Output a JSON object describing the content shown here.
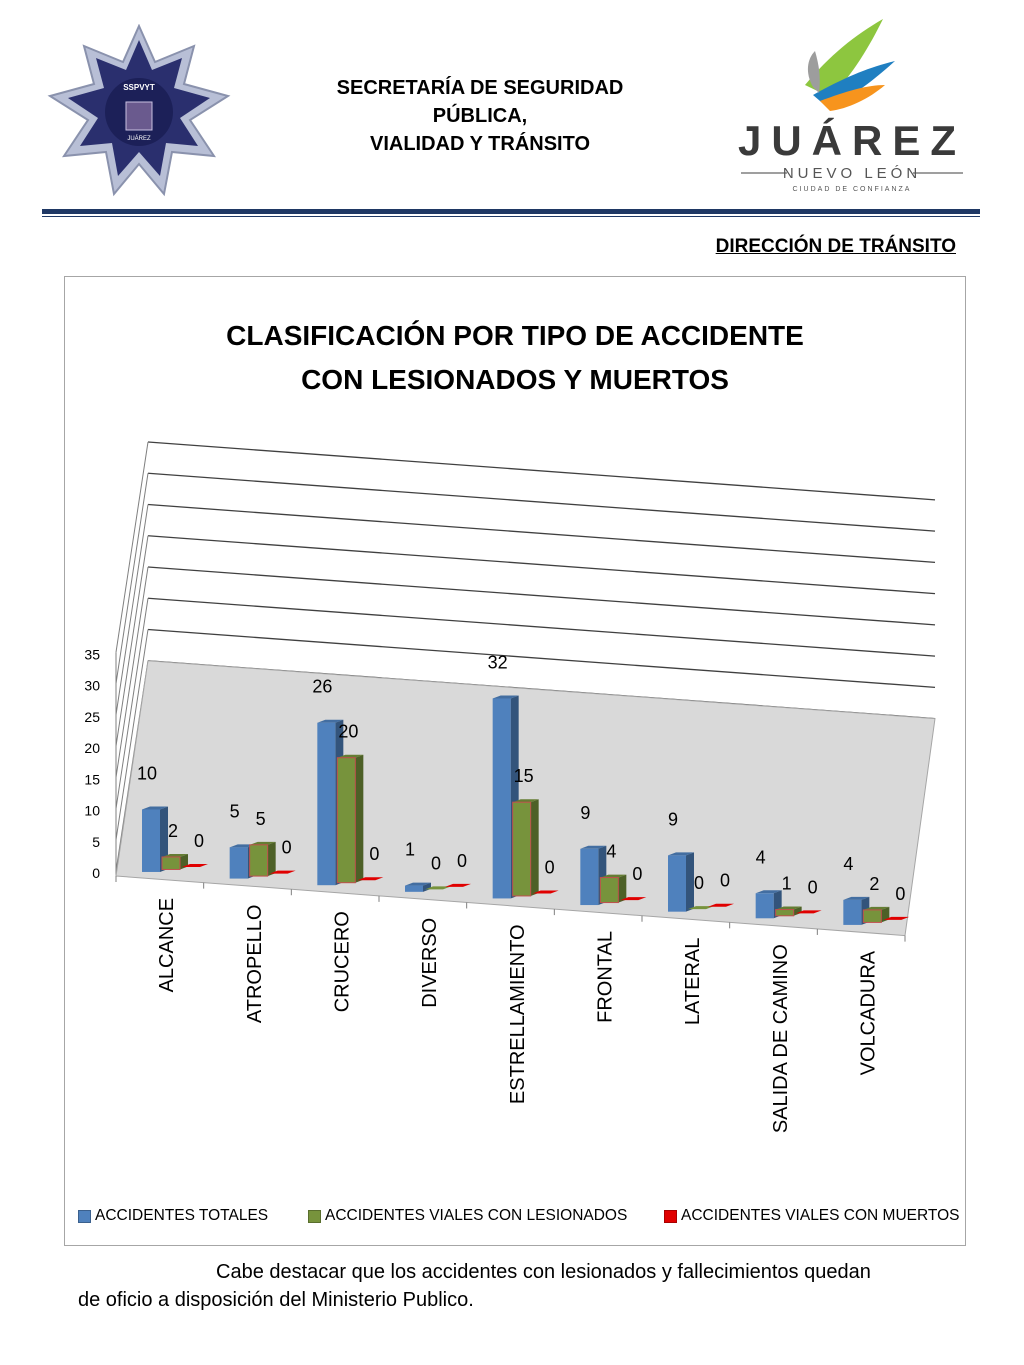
{
  "header": {
    "title_lines": [
      "SECRETARÍA DE SEGURIDAD",
      "PÚBLICA,",
      "VIALIDAD Y TRÁNSITO"
    ],
    "subtitle": "DIRECCIÓN DE TRÁNSITO"
  },
  "logos": {
    "left_badge_text": [
      "SSPVYT",
      "JUÁREZ"
    ],
    "right_wordmark": "JUÁREZ",
    "right_sub": "NUEVO LEÓN",
    "right_tagline": "CIUDAD DE CONFIANZA"
  },
  "chart_data": {
    "type": "bar",
    "title": "CLASIFICACIÓN  POR TIPO DE ACCIDENTE CON LESIONADOS Y MUERTOS",
    "title_lines": [
      "CLASIFICACIÓN  POR TIPO DE ACCIDENTE",
      "CON LESIONADOS Y MUERTOS"
    ],
    "categories": [
      "ALCANCE",
      "ATROPELLO",
      "CRUCERO",
      "DIVERSO",
      "ESTRELLAMIENTO",
      "FRONTAL",
      "LATERAL",
      "SALIDA DE CAMINO",
      "VOLCADURA"
    ],
    "series": [
      {
        "name": "ACCIDENTES TOTALES",
        "color": "#4f81bd",
        "values": [
          10,
          5,
          26,
          1,
          32,
          9,
          9,
          4,
          4
        ]
      },
      {
        "name": "ACCIDENTES VIALES CON LESIONADOS",
        "color": "#77933c",
        "values": [
          2,
          5,
          20,
          0,
          15,
          4,
          0,
          1,
          2
        ]
      },
      {
        "name": "ACCIDENTES VIALES CON MUERTOS",
        "color": "#e00000",
        "values": [
          0,
          0,
          0,
          0,
          0,
          0,
          0,
          0,
          0
        ]
      }
    ],
    "yticks": [
      "0",
      "5",
      "10",
      "15",
      "20",
      "25",
      "30",
      "35"
    ],
    "ylim": [
      0,
      35
    ],
    "grid": true,
    "legend_position": "bottom",
    "style": "3d-clustered-column"
  },
  "footer": {
    "line1": "Cabe destacar que los accidentes con lesionados y fallecimientos  quedan",
    "line2": "de oficio a disposición del Ministerio Publico."
  }
}
